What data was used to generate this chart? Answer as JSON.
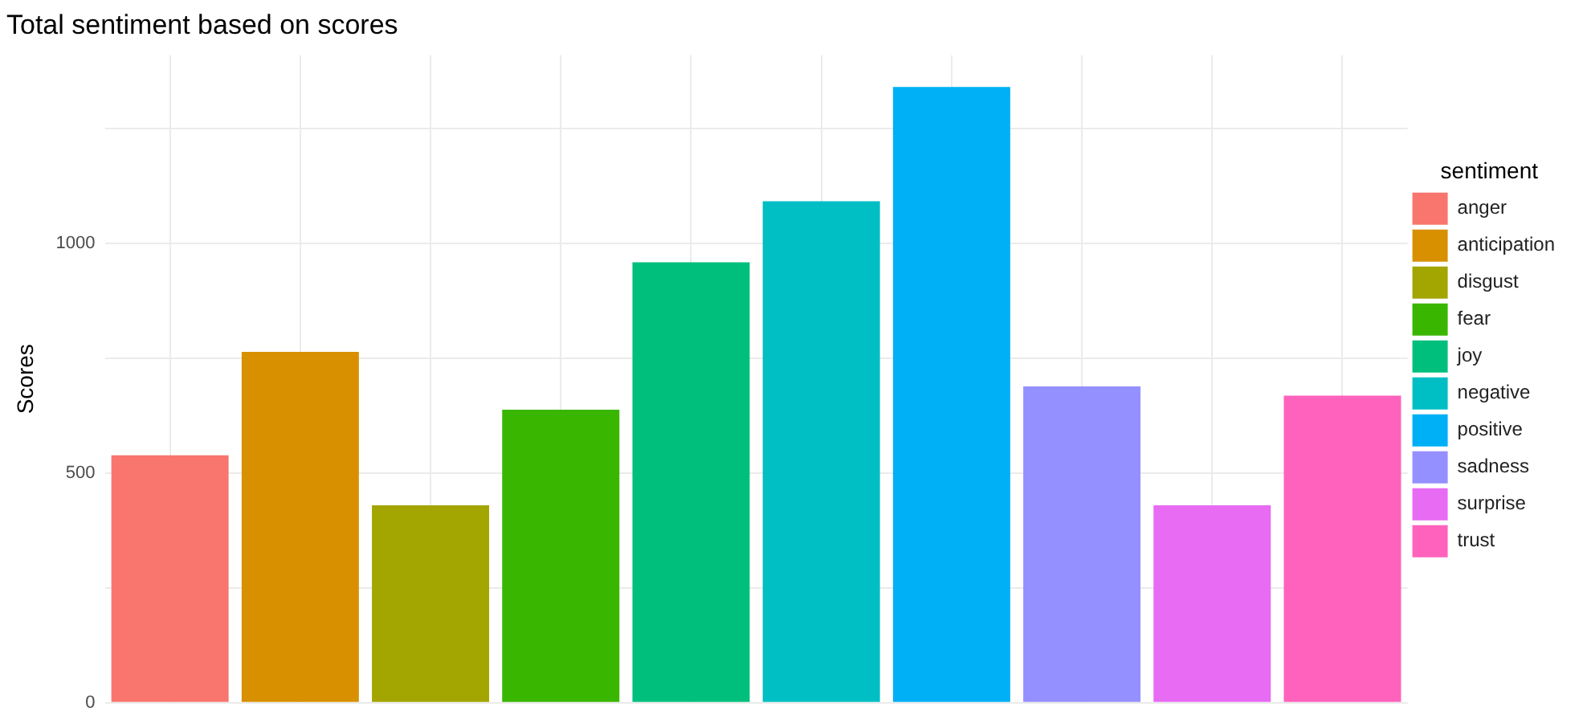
{
  "chart_data": {
    "type": "bar",
    "title": "Total sentiment based on scores",
    "ylabel": "Scores",
    "legend_title": "sentiment",
    "categories": [
      null,
      null,
      null,
      null,
      null,
      null,
      null,
      null,
      null,
      null
    ],
    "stacked": true,
    "series": [
      {
        "name": "anger",
        "color": "#f8766d",
        "values": [
          539,
          null,
          null,
          null,
          null,
          null,
          null,
          null,
          null,
          null
        ]
      },
      {
        "name": "anticipation",
        "color": "#d89000",
        "values": [
          null,
          764,
          null,
          null,
          null,
          null,
          null,
          null,
          null,
          null
        ]
      },
      {
        "name": "disgust",
        "color": "#a3a500",
        "values": [
          null,
          null,
          430,
          null,
          null,
          null,
          null,
          null,
          null,
          null
        ]
      },
      {
        "name": "fear",
        "color": "#39b600",
        "values": [
          null,
          null,
          null,
          638,
          null,
          null,
          null,
          null,
          null,
          null
        ]
      },
      {
        "name": "joy",
        "color": "#00bf7d",
        "values": [
          null,
          null,
          null,
          null,
          959,
          null,
          null,
          null,
          null,
          null
        ]
      },
      {
        "name": "negative",
        "color": "#00bfc4",
        "values": [
          null,
          null,
          null,
          null,
          null,
          1092,
          null,
          null,
          null,
          null
        ]
      },
      {
        "name": "positive",
        "color": "#00b0f6",
        "values": [
          null,
          null,
          null,
          null,
          null,
          null,
          1341,
          null,
          null,
          null
        ]
      },
      {
        "name": "sadness",
        "color": "#9590ff",
        "values": [
          null,
          null,
          null,
          null,
          null,
          null,
          null,
          689,
          null,
          null
        ]
      },
      {
        "name": "surprise",
        "color": "#e76bf3",
        "values": [
          null,
          null,
          null,
          null,
          null,
          null,
          null,
          null,
          430,
          null
        ]
      },
      {
        "name": "trust",
        "color": "#ff62bc",
        "values": [
          null,
          null,
          null,
          null,
          null,
          null,
          null,
          null,
          null,
          669
        ]
      }
    ],
    "ylim": [
      0,
      1410
    ],
    "yticks": [
      0,
      {
        "value": 250,
        "label": null
      },
      500,
      {
        "value": 750,
        "label": null
      },
      1000,
      {
        "value": 1250,
        "label": null
      }
    ],
    "grid": true,
    "legend": "right",
    "tick_labels": "y"
  }
}
